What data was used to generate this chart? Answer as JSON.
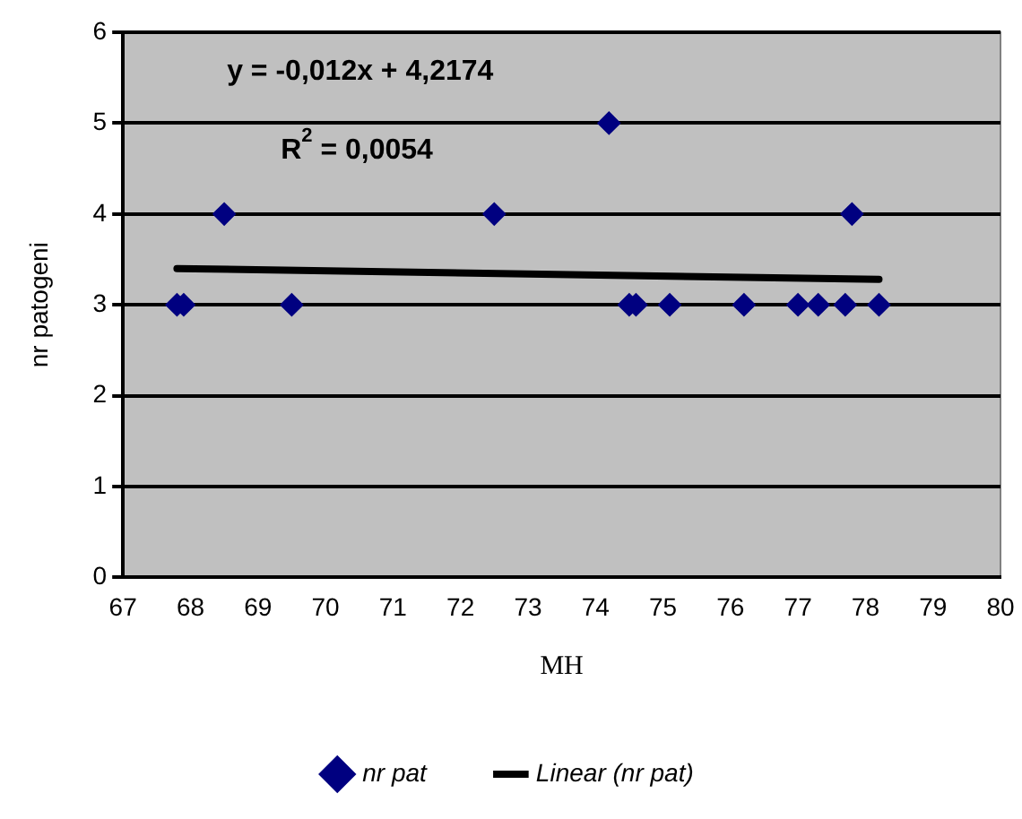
{
  "chart_data": {
    "type": "scatter",
    "xlabel": "MH",
    "ylabel": "nr patogeni",
    "series": [
      {
        "name": "nr pat",
        "color": "#000080",
        "marker": "diamond",
        "x": [
          67.8,
          67.9,
          68.5,
          69.5,
          72.5,
          74.2,
          74.5,
          74.6,
          75.1,
          76.2,
          77.0,
          77.3,
          77.7,
          77.8,
          78.2
        ],
        "values": [
          3,
          3,
          4,
          3,
          4,
          5,
          3,
          3,
          3,
          3,
          3,
          3,
          3,
          4,
          3
        ]
      },
      {
        "name": "Linear (nr pat)",
        "type": "line",
        "color": "#000000",
        "marker": "none",
        "x": [
          67.8,
          78.2
        ],
        "values": [
          3.4,
          3.28
        ]
      }
    ],
    "annotations": [
      "y = -0,012x + 4,2174",
      "R$^{2}$ = 0,0054"
    ],
    "xlim": [
      67,
      80
    ],
    "xticks": [
      67,
      68,
      69,
      70,
      71,
      72,
      73,
      74,
      75,
      76,
      77,
      78,
      79,
      80
    ],
    "ylim": [
      0,
      6
    ],
    "yticks": [
      0,
      1,
      2,
      3,
      4,
      5,
      6
    ],
    "grid": "y",
    "legend": "bottom"
  }
}
